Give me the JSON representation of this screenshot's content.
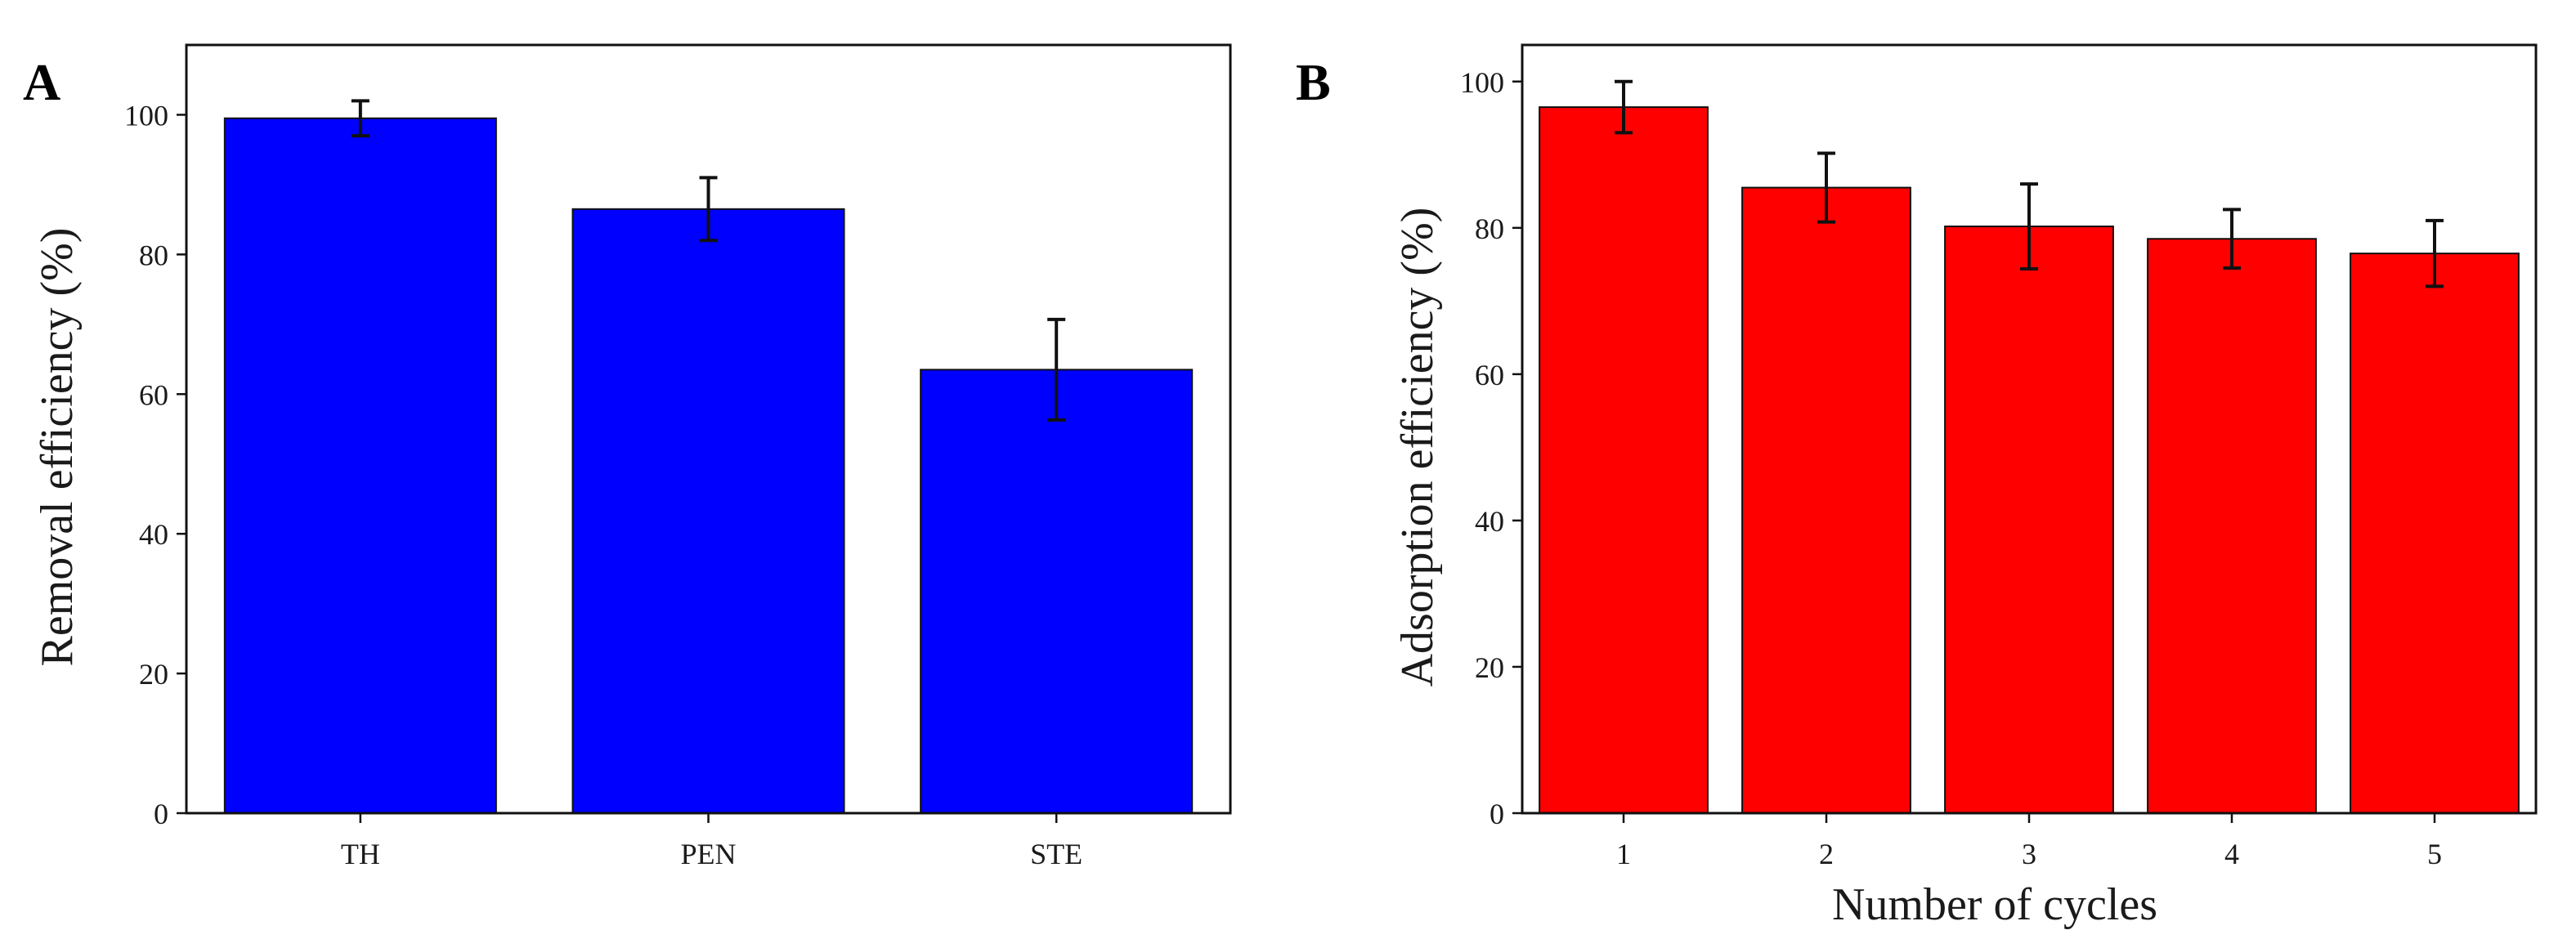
{
  "chart_data": [
    {
      "panel": "A",
      "type": "bar",
      "categories": [
        "TH",
        "PEN",
        "STE"
      ],
      "values": [
        99.5,
        86.5,
        63.5
      ],
      "errors": [
        2.5,
        4.5,
        7.2
      ],
      "ylim": [
        0,
        110
      ],
      "yticks": [
        0,
        20,
        40,
        60,
        80,
        100
      ],
      "xlabel": "",
      "ylabel": "Removal efficiency (%)",
      "bar_color": "#0000ff",
      "grid": false
    },
    {
      "panel": "B",
      "type": "bar",
      "categories": [
        "1",
        "2",
        "3",
        "4",
        "5"
      ],
      "values": [
        96.5,
        85.5,
        80.2,
        78.5,
        76.5
      ],
      "errors": [
        3.5,
        4.7,
        5.8,
        4.0,
        4.5
      ],
      "ylim": [
        0,
        105
      ],
      "yticks": [
        0,
        20,
        40,
        60,
        80,
        100
      ],
      "xlabel": "Number of cycles",
      "ylabel": "Adsorption efficiency (%)",
      "bar_color": "#ff0000",
      "grid": false
    }
  ]
}
